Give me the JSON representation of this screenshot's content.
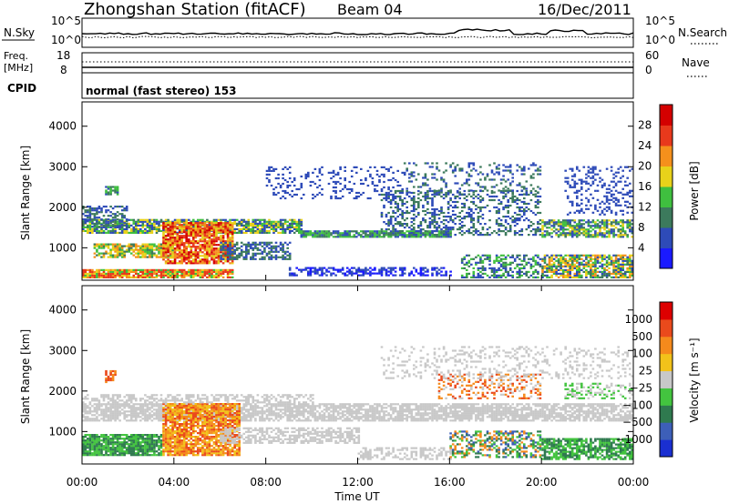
{
  "header": {
    "station": "Zhongshan Station (fitACF)",
    "beam": "Beam 04",
    "date": "16/Dec/2011"
  },
  "nsky_panel": {
    "label": "N.Sky",
    "ytick_top": "10^5",
    "ytick_bottom": "10^0",
    "right_label": "N.Search",
    "right_tick_top": "10^5",
    "right_tick_bottom": "10^0"
  },
  "freq_panel": {
    "label_line1": "Freq.",
    "label_line2": "[MHz]",
    "ytick_top": "18",
    "ytick_bottom": "8",
    "right_label": "Nave",
    "right_tick_top": "60",
    "right_tick_bottom": "0"
  },
  "cpid": {
    "label": "CPID",
    "mode_text": "normal (fast stereo) 153"
  },
  "chart_data": [
    {
      "type": "heatmap",
      "name": "power-panel",
      "ylabel": "Slant Range [km]",
      "ytick_labels": [
        "1000",
        "2000",
        "3000",
        "4000"
      ],
      "y_ticks": [
        1000,
        2000,
        3000,
        4000
      ],
      "ylim": [
        200,
        4600
      ],
      "xlim_hours": [
        0,
        24
      ],
      "colorbar": {
        "label": "Power [dB]",
        "ticks": [
          "4",
          "8",
          "12",
          "16",
          "20",
          "24",
          "28"
        ],
        "colors": [
          "#1a1aff",
          "#2e4bb8",
          "#3c7a5c",
          "#3fbf3f",
          "#e8d21a",
          "#f5901c",
          "#e8391c",
          "#d40000"
        ]
      }
    },
    {
      "type": "heatmap",
      "name": "velocity-panel",
      "ylabel": "Slant Range [km]",
      "ytick_labels": [
        "1000",
        "2000",
        "3000",
        "4000"
      ],
      "y_ticks": [
        1000,
        2000,
        3000,
        4000
      ],
      "ylim": [
        200,
        4600
      ],
      "xlim_hours": [
        0,
        24
      ],
      "xtick_labels": [
        "00:00",
        "04:00",
        "08:00",
        "12:00",
        "16:00",
        "20:00",
        "00:00"
      ],
      "xlabel": "Time UT",
      "colorbar": {
        "label": "Velocity [m s⁻¹]",
        "ticks": [
          "1000",
          "500",
          "100",
          "25",
          "−25",
          "−100",
          "−500",
          "−1000"
        ],
        "colors": [
          "#1a2fd1",
          "#3d5fb8",
          "#2f7a4f",
          "#43c43f",
          "#c8c8c8",
          "#f2c21a",
          "#f58a1c",
          "#ea4a1c",
          "#dd0000"
        ]
      }
    }
  ]
}
